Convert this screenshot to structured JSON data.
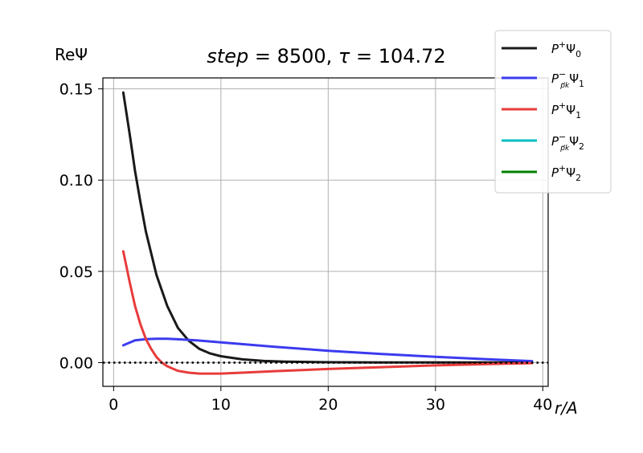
{
  "chart_data": {
    "type": "line",
    "title": "step = 8500, τ = 104.72",
    "title_parts": {
      "step_word": "step",
      "step_value": " = 8500, ",
      "tau_word": "τ",
      "tau_value": " = 104.72"
    },
    "xlabel": "r/A",
    "ylabel": "ReΨ",
    "xlim": [
      -1,
      40.5
    ],
    "ylim": [
      -0.013,
      0.156
    ],
    "xticks": [
      0,
      10,
      20,
      30,
      40
    ],
    "yticks": [
      0.0,
      0.05,
      0.1,
      0.15
    ],
    "xtick_labels": [
      "0",
      "10",
      "20",
      "30",
      "40"
    ],
    "ytick_labels": [
      "0.00",
      "0.05",
      "0.10",
      "0.15"
    ],
    "grid": true,
    "legend_position": "top-right, outside",
    "reference_line": {
      "y": 0,
      "style": "dotted",
      "color": "#000000"
    },
    "series": [
      {
        "name": "P⁺Ψ₀",
        "legend_main": "P",
        "legend_sup": "+",
        "legend_psi": "Ψ",
        "legend_idx": "0",
        "legend_sub": "",
        "color": "#1a1a1a",
        "fn": "black",
        "x": [
          0.9,
          1.5,
          2,
          2.5,
          3,
          4,
          5,
          6,
          7,
          8,
          9,
          10,
          12,
          14,
          16,
          20,
          25,
          30,
          35,
          39
        ],
        "y": [
          0.148,
          0.125,
          0.105,
          0.088,
          0.072,
          0.048,
          0.031,
          0.019,
          0.012,
          0.0075,
          0.005,
          0.0035,
          0.0018,
          0.0009,
          0.0005,
          0.0002,
          0.0001,
          0.0001,
          0.0001,
          0.0001
        ]
      },
      {
        "name": "P⁻ₚₖΨ₁",
        "legend_main": "P",
        "legend_sup": "−",
        "legend_psi": "Ψ",
        "legend_idx": "1",
        "legend_sub": "p⃗k",
        "color": "#3b3bf0",
        "fn": "blue",
        "x": [
          0.9,
          2,
          3,
          4,
          5,
          6,
          8,
          10,
          15,
          20,
          25,
          30,
          35,
          39
        ],
        "y": [
          0.0095,
          0.0122,
          0.0129,
          0.0131,
          0.0131,
          0.0128,
          0.0121,
          0.0111,
          0.0087,
          0.0065,
          0.0047,
          0.0032,
          0.0018,
          0.0008
        ]
      },
      {
        "name": "P⁺Ψ₁",
        "legend_main": "P",
        "legend_sup": "+",
        "legend_psi": "Ψ",
        "legend_idx": "1",
        "legend_sub": "",
        "color": "#e83b3b",
        "fn": "red",
        "x": [
          0.9,
          1.5,
          2,
          2.5,
          3,
          3.5,
          4,
          4.5,
          5,
          6,
          7,
          8,
          9,
          10,
          12,
          15,
          20,
          25,
          30,
          35,
          39
        ],
        "y": [
          0.061,
          0.044,
          0.031,
          0.021,
          0.013,
          0.0075,
          0.003,
          0.0,
          -0.002,
          -0.0045,
          -0.0055,
          -0.006,
          -0.006,
          -0.006,
          -0.0055,
          -0.0047,
          -0.0035,
          -0.0025,
          -0.0015,
          -0.0008,
          -0.0003
        ]
      },
      {
        "name": "P⁻ₚₖΨ₂",
        "legend_main": "P",
        "legend_sup": "−",
        "legend_psi": "Ψ",
        "legend_idx": "2",
        "legend_sub": "p⃗k",
        "color": "#00bfbf",
        "fn": "cyan",
        "x": [],
        "y": []
      },
      {
        "name": "P⁺Ψ₂",
        "legend_main": "P",
        "legend_sup": "+",
        "legend_psi": "Ψ",
        "legend_idx": "2",
        "legend_sub": "",
        "color": "#008000",
        "fn": "green",
        "x": [],
        "y": []
      }
    ]
  }
}
